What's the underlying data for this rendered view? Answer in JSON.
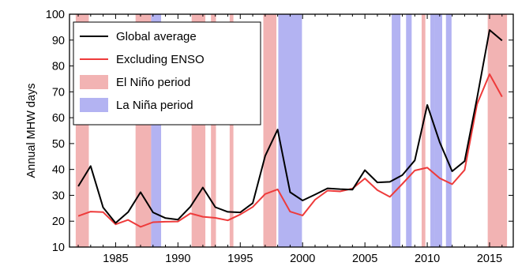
{
  "chart_data": {
    "type": "line",
    "title": "",
    "xlabel": "",
    "ylabel": "Annual MHW days",
    "xlim": [
      1981.3,
      2016.9
    ],
    "ylim": [
      10,
      100
    ],
    "xticks": [
      1985,
      1990,
      1995,
      2000,
      2005,
      2010,
      2015
    ],
    "yticks": [
      10,
      20,
      30,
      40,
      50,
      60,
      70,
      80,
      90,
      100
    ],
    "grid": false,
    "legend_position": "top-left",
    "x": [
      1982,
      1983,
      1984,
      1985,
      1986,
      1987,
      1988,
      1989,
      1990,
      1991,
      1992,
      1993,
      1994,
      1995,
      1996,
      1997,
      1998,
      1999,
      2000,
      2001,
      2002,
      2003,
      2004,
      2005,
      2006,
      2007,
      2008,
      2009,
      2010,
      2011,
      2012,
      2013,
      2014,
      2015,
      2016
    ],
    "series": [
      {
        "name": "Global average",
        "color": "#000000",
        "values": [
          33.5,
          41.3,
          25.3,
          19.3,
          23.5,
          31.2,
          23.4,
          21.2,
          20.6,
          25.6,
          33.0,
          25.4,
          23.6,
          23.4,
          27.0,
          45.2,
          55.4,
          31.2,
          28.0,
          30.3,
          32.7,
          32.4,
          32.2,
          39.7,
          35.0,
          35.2,
          37.8,
          43.5,
          64.9,
          50.5,
          39.3,
          43.2,
          67.7,
          93.9,
          89.8
        ]
      },
      {
        "name": "Excluding ENSO",
        "color": "#ee3b3b",
        "values": [
          22.0,
          23.7,
          23.5,
          18.8,
          20.5,
          17.8,
          19.6,
          19.8,
          19.9,
          23.0,
          21.7,
          21.3,
          20.3,
          22.6,
          25.5,
          30.5,
          32.3,
          23.7,
          22.2,
          28.3,
          31.8,
          31.5,
          32.6,
          36.5,
          32.0,
          29.4,
          34.4,
          39.6,
          40.7,
          36.6,
          34.3,
          39.8,
          65.3,
          76.8,
          68.1
        ]
      }
    ],
    "shaded_periods": [
      {
        "name": "El Niño period",
        "color": "#f2b3b3",
        "ranges": [
          [
            1981.8,
            1982.85
          ],
          [
            1986.6,
            1987.85
          ],
          [
            1991.1,
            1992.2
          ],
          [
            1992.65,
            1993.05
          ],
          [
            1994.15,
            1994.45
          ],
          [
            1996.85,
            1997.9
          ],
          [
            2009.55,
            2009.85
          ],
          [
            2014.85,
            2016.4
          ]
        ]
      },
      {
        "name": "La Niña period",
        "color": "#b3b3f2",
        "ranges": [
          [
            1987.85,
            1988.65
          ],
          [
            1998.05,
            1999.95
          ],
          [
            2007.15,
            2007.85
          ],
          [
            2008.3,
            2008.75
          ],
          [
            2010.25,
            2010.6
          ],
          [
            2010.6,
            2011.2
          ],
          [
            2011.5,
            2011.95
          ]
        ]
      }
    ]
  }
}
